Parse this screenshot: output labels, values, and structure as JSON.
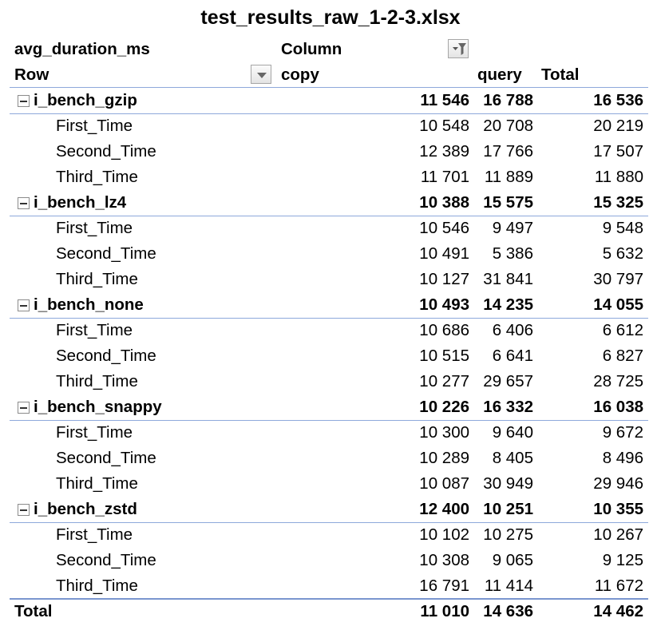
{
  "title": "test_results_raw_1-2-3.xlsx",
  "pivot": {
    "value_field": "avg_duration_ms",
    "column_label": "Column",
    "row_label": "Row",
    "col_headers": [
      "copy",
      "query",
      "Total"
    ],
    "groups": [
      {
        "name": "i_bench_gzip",
        "values": [
          "11 546",
          "16 788",
          "16 536"
        ],
        "rows": [
          {
            "label": "First_Time",
            "values": [
              "10 548",
              "20 708",
              "20 219"
            ]
          },
          {
            "label": "Second_Time",
            "values": [
              "12 389",
              "17 766",
              "17 507"
            ]
          },
          {
            "label": "Third_Time",
            "values": [
              "11 701",
              "11 889",
              "11 880"
            ]
          }
        ]
      },
      {
        "name": "i_bench_lz4",
        "values": [
          "10 388",
          "15 575",
          "15 325"
        ],
        "rows": [
          {
            "label": "First_Time",
            "values": [
              "10 546",
              "9 497",
              "9 548"
            ]
          },
          {
            "label": "Second_Time",
            "values": [
              "10 491",
              "5 386",
              "5 632"
            ]
          },
          {
            "label": "Third_Time",
            "values": [
              "10 127",
              "31 841",
              "30 797"
            ]
          }
        ]
      },
      {
        "name": "i_bench_none",
        "values": [
          "10 493",
          "14 235",
          "14 055"
        ],
        "rows": [
          {
            "label": "First_Time",
            "values": [
              "10 686",
              "6 406",
              "6 612"
            ]
          },
          {
            "label": "Second_Time",
            "values": [
              "10 515",
              "6 641",
              "6 827"
            ]
          },
          {
            "label": "Third_Time",
            "values": [
              "10 277",
              "29 657",
              "28 725"
            ]
          }
        ]
      },
      {
        "name": "i_bench_snappy",
        "values": [
          "10 226",
          "16 332",
          "16 038"
        ],
        "rows": [
          {
            "label": "First_Time",
            "values": [
              "10 300",
              "9 640",
              "9 672"
            ]
          },
          {
            "label": "Second_Time",
            "values": [
              "10 289",
              "8 405",
              "8 496"
            ]
          },
          {
            "label": "Third_Time",
            "values": [
              "10 087",
              "30 949",
              "29 946"
            ]
          }
        ]
      },
      {
        "name": "i_bench_zstd",
        "values": [
          "12 400",
          "10 251",
          "10 355"
        ],
        "rows": [
          {
            "label": "First_Time",
            "values": [
              "10 102",
              "10 275",
              "10 267"
            ]
          },
          {
            "label": "Second_Time",
            "values": [
              "10 308",
              "9 065",
              "9 125"
            ]
          },
          {
            "label": "Third_Time",
            "values": [
              "16 791",
              "11 414",
              "11 672"
            ]
          }
        ]
      }
    ],
    "grand_total": {
      "label": "Total",
      "values": [
        "11 010",
        "14 636",
        "14 462"
      ]
    }
  },
  "icons": {
    "column_filter": "filter-dropdown-icon",
    "row_filter": "dropdown-arrow-icon",
    "collapse": "collapse-minus-icon"
  },
  "colors": {
    "divider": "#8ea9db"
  }
}
